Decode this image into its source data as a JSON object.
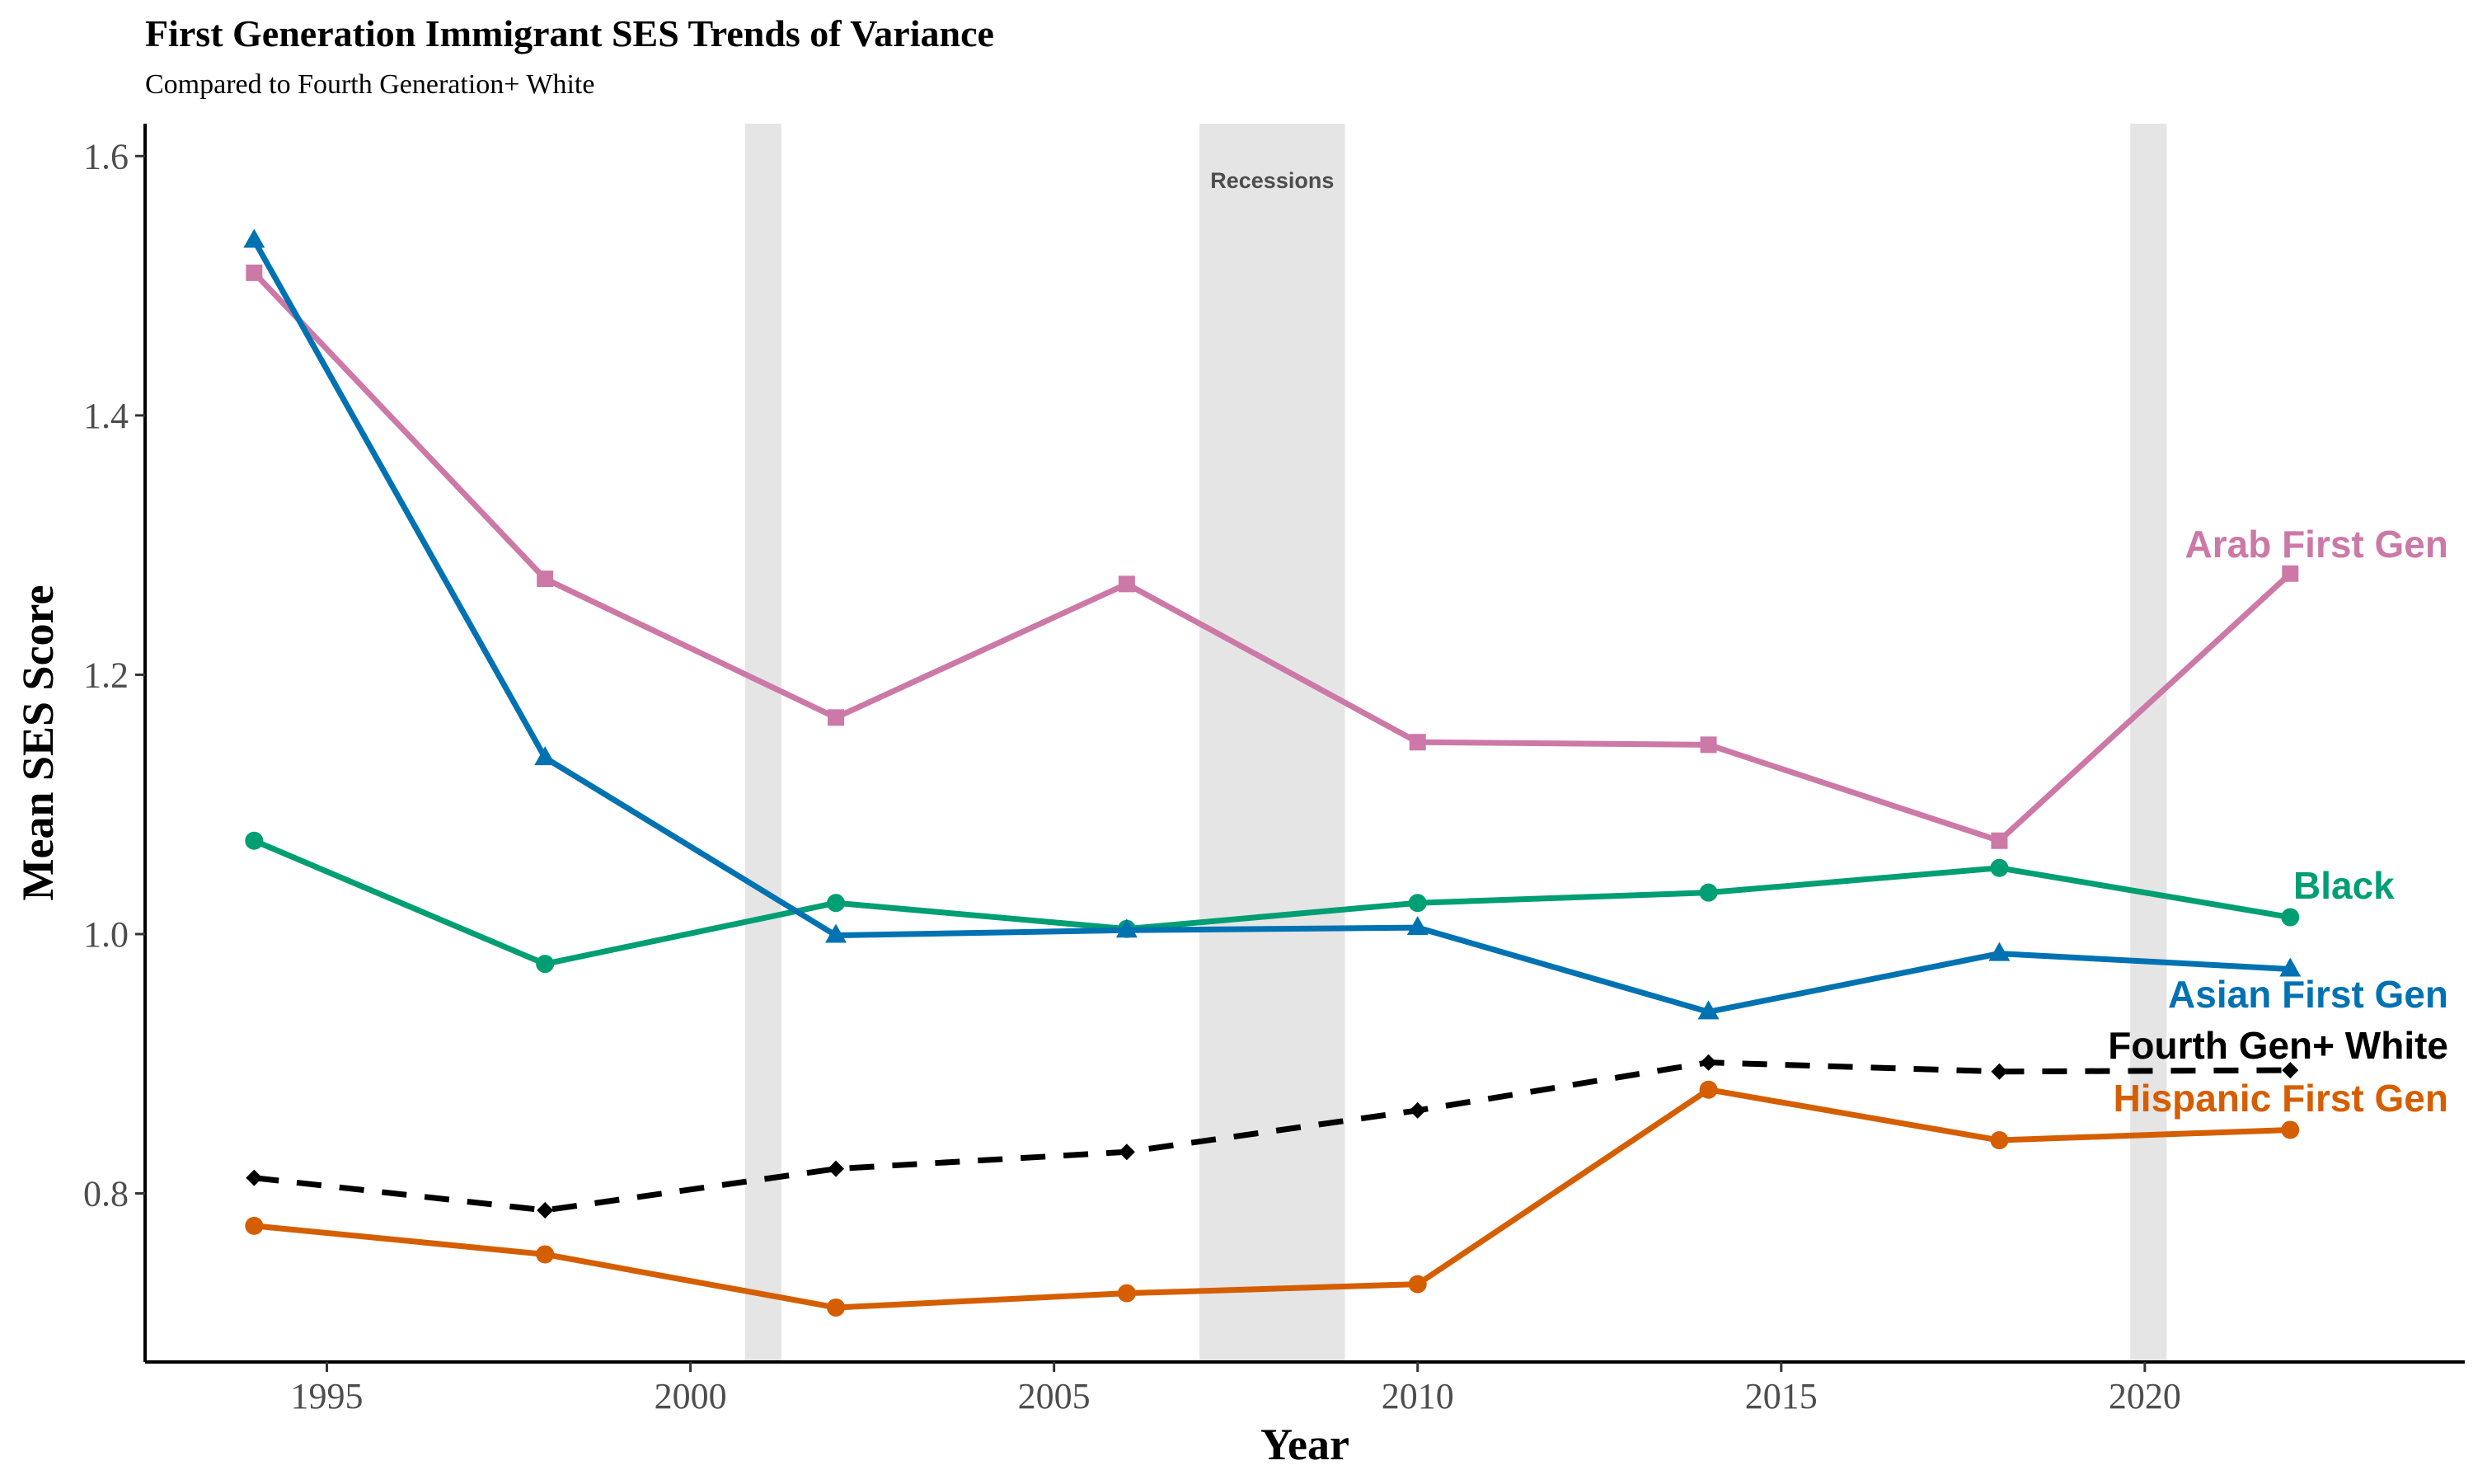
{
  "title": "First Generation Immigrant SES Trends of Variance",
  "subtitle": "Compared to Fourth Generation+ White",
  "chart_data": {
    "type": "line",
    "title": "First Generation Immigrant SES Trends of Variance",
    "subtitle": "Compared to Fourth Generation+ White",
    "xlabel": "Year",
    "ylabel": "Mean SES Score",
    "xlim": [
      1992.5,
      2024.4
    ],
    "ylim": [
      0.67,
      1.625
    ],
    "x_ticks": [
      1995,
      2000,
      2005,
      2010,
      2015,
      2020
    ],
    "y_ticks": [
      0.8,
      1.0,
      1.2,
      1.4,
      1.6
    ],
    "x_tick_labels": [
      "1995",
      "2000",
      "2005",
      "2010",
      "2015",
      "2020"
    ],
    "y_tick_labels": [
      "0.8",
      "1.0",
      "1.2",
      "1.4",
      "1.6"
    ],
    "grid": false,
    "x": [
      1994,
      1998,
      2002,
      2006,
      2010,
      2014,
      2018,
      2022
    ],
    "recessions": {
      "label": "Recessions",
      "periods": [
        [
          2000.75,
          2001.25
        ],
        [
          2007.0,
          2009.0
        ],
        [
          2019.8,
          2020.3
        ]
      ],
      "color": "#e5e5e5"
    },
    "series": [
      {
        "name": "Arab First Gen",
        "color": "#cc79a7",
        "marker": "square",
        "dash": false,
        "values": [
          1.51,
          1.274,
          1.167,
          1.27,
          1.148,
          1.146,
          1.072,
          1.278
        ]
      },
      {
        "name": "Black",
        "color": "#009e73",
        "marker": "circle",
        "dash": false,
        "values": [
          1.072,
          0.977,
          1.024,
          1.004,
          1.024,
          1.032,
          1.051,
          1.013
        ]
      },
      {
        "name": "Asian First Gen",
        "color": "#0072b2",
        "marker": "triangle",
        "dash": false,
        "values": [
          1.535,
          1.136,
          0.999,
          1.003,
          1.005,
          0.94,
          0.985,
          0.973
        ]
      },
      {
        "name": "Fourth Gen+ White",
        "color": "#000000",
        "marker": "diamond",
        "dash": true,
        "values": [
          0.812,
          0.787,
          0.819,
          0.832,
          0.864,
          0.901,
          0.894,
          0.895
        ]
      },
      {
        "name": "Hispanic First Gen",
        "color": "#d55e00",
        "marker": "circle",
        "dash": false,
        "values": [
          0.775,
          0.753,
          0.712,
          0.723,
          0.73,
          0.88,
          0.841,
          0.849
        ]
      }
    ]
  }
}
